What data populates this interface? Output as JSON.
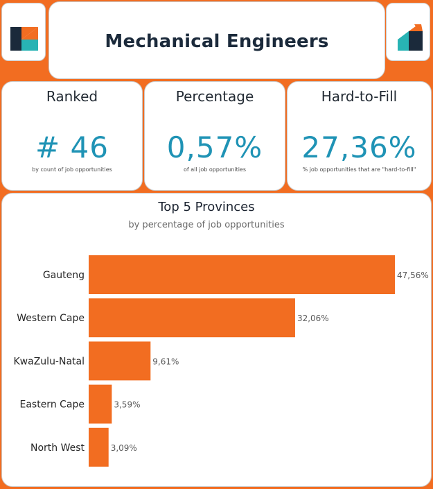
{
  "header": {
    "title": "Mechanical Engineers"
  },
  "logos": {
    "left_icon": "brand-logo-icon",
    "right_icon": "brand-logo-icon"
  },
  "kpis": [
    {
      "label": "Ranked",
      "value": "# 46",
      "sub": "by count of job opportunities"
    },
    {
      "label": "Percentage",
      "value": "0,57%",
      "sub": "of all job opportunities"
    },
    {
      "label": "Hard-to-Fill",
      "value": "27,36%",
      "sub": "% job opportunities that are \"hard-to-fill\""
    }
  ],
  "colors": {
    "accent": "#f26d21",
    "value_teal": "#1f93b5",
    "navy": "#1b2a3b",
    "logo_teal": "#28b3b4"
  },
  "chart_data": {
    "type": "bar",
    "orientation": "horizontal",
    "title": "Top 5 Provinces",
    "subtitle": "by percentage of job opportunities",
    "categories": [
      "Gauteng",
      "Western Cape",
      "KwaZulu-Natal",
      "Eastern Cape",
      "North West"
    ],
    "values": [
      47.56,
      32.06,
      9.61,
      3.59,
      3.09
    ],
    "value_labels": [
      "47,56%",
      "32,06%",
      "9,61%",
      "3,59%",
      "3,09%"
    ],
    "xlim": [
      0,
      47.56
    ],
    "grid": false,
    "legend": "none"
  }
}
